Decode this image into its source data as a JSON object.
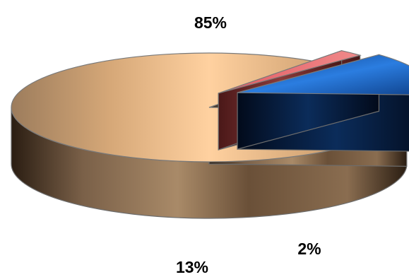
{
  "chart_data": {
    "type": "pie",
    "style": "3d-exploded",
    "title": "",
    "slices": [
      {
        "value": 85,
        "label": "85%",
        "color": "#f6c08f"
      },
      {
        "value": 13,
        "label": "13%",
        "color": "#1f6fd0"
      },
      {
        "value": 2,
        "label": "2%",
        "color": "#e8666c"
      }
    ],
    "legend": "none"
  }
}
